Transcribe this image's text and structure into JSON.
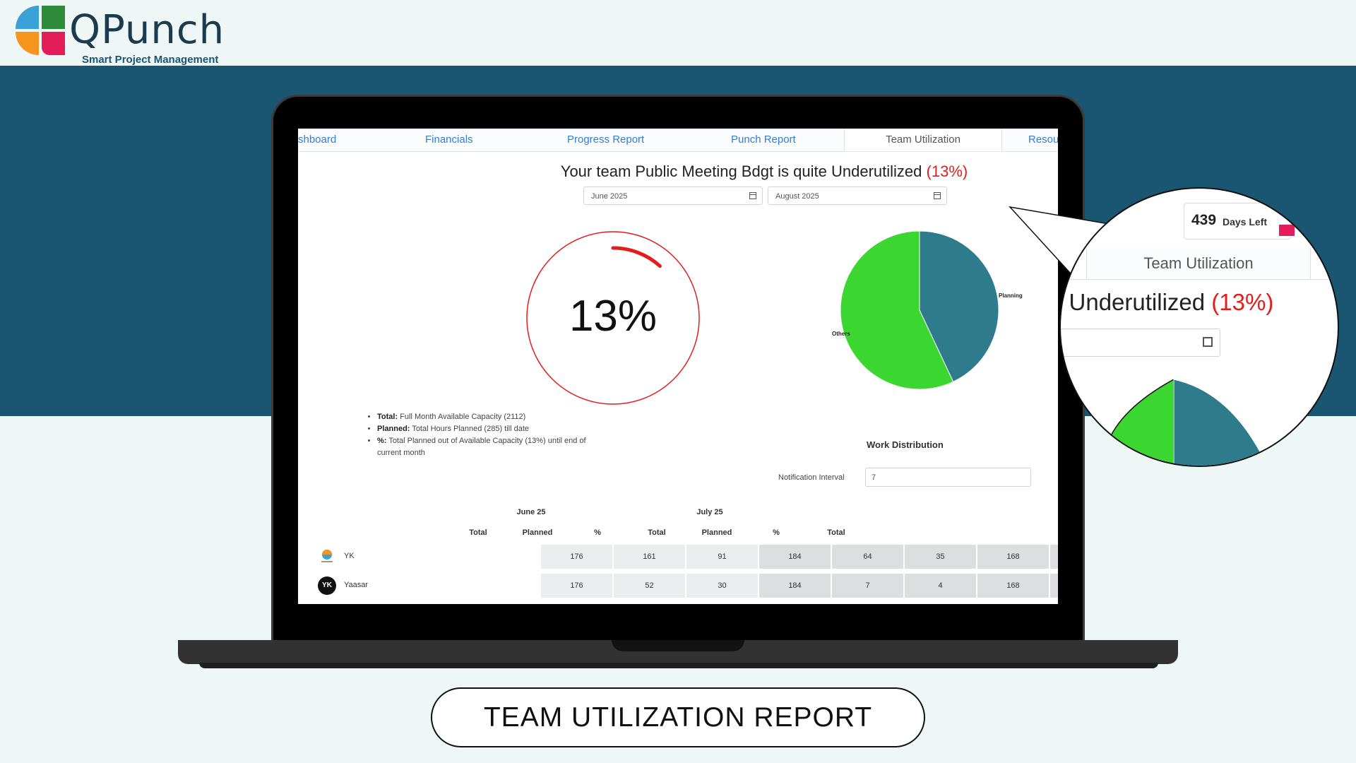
{
  "brand": {
    "name": "QPunch",
    "tagline": "Smart Project Management",
    "colors": {
      "blue": "#3aa0d8",
      "green": "#2e8b3a",
      "orange": "#f7941d",
      "pink": "#e31d5a"
    }
  },
  "tabs": [
    "shboard",
    "Financials",
    "Progress Report",
    "Punch Report",
    "Team Utilization",
    "Resou"
  ],
  "active_tab": "Team Utilization",
  "header": {
    "title_prefix": "Your team Public Meeting Bdgt is quite Underutilized",
    "title_pct": "(13%)"
  },
  "filters": {
    "start": "June 2025",
    "end": "August 2025"
  },
  "gauge": {
    "value_label": "13%",
    "value": 0.13,
    "color": "#e31d1d"
  },
  "chart_data": {
    "type": "pie",
    "slices": [
      {
        "label": "Planning",
        "value": 43,
        "color": "#2e7b8b"
      },
      {
        "label": "Others",
        "value": 57,
        "color": "#3bd630"
      }
    ]
  },
  "legend": [
    {
      "term": "Total:",
      "desc": "Full Month Available Capacity (2112)"
    },
    {
      "term": "Planned:",
      "desc": "Total Hours Planned (285) till date"
    },
    {
      "term": "%:",
      "desc": "Total Planned out of Available Capacity (13%) until end of current month"
    }
  ],
  "work_distribution": {
    "title": "Work Distribution",
    "notification_label": "Notification Interval",
    "notification_value": "7"
  },
  "table": {
    "months": [
      "June 25",
      "July 25"
    ],
    "columns": [
      "Total",
      "Planned",
      "%",
      "Total",
      "Planned",
      "%",
      "Total"
    ],
    "rows": [
      {
        "name": "YK",
        "cells": [
          "176",
          "161",
          "91",
          "184",
          "64",
          "35",
          "168"
        ]
      },
      {
        "name": "Yaasar",
        "avatar_text": "YK",
        "cells": [
          "176",
          "52",
          "30",
          "184",
          "7",
          "4",
          "168"
        ]
      }
    ]
  },
  "magnifier": {
    "days_left_num": "439",
    "days_left_label": "Days Left",
    "tab": "Team Utilization",
    "title_fragment": "e Underutilized",
    "title_pct": "(13%)"
  },
  "caption": "TEAM UTILIZATION REPORT"
}
